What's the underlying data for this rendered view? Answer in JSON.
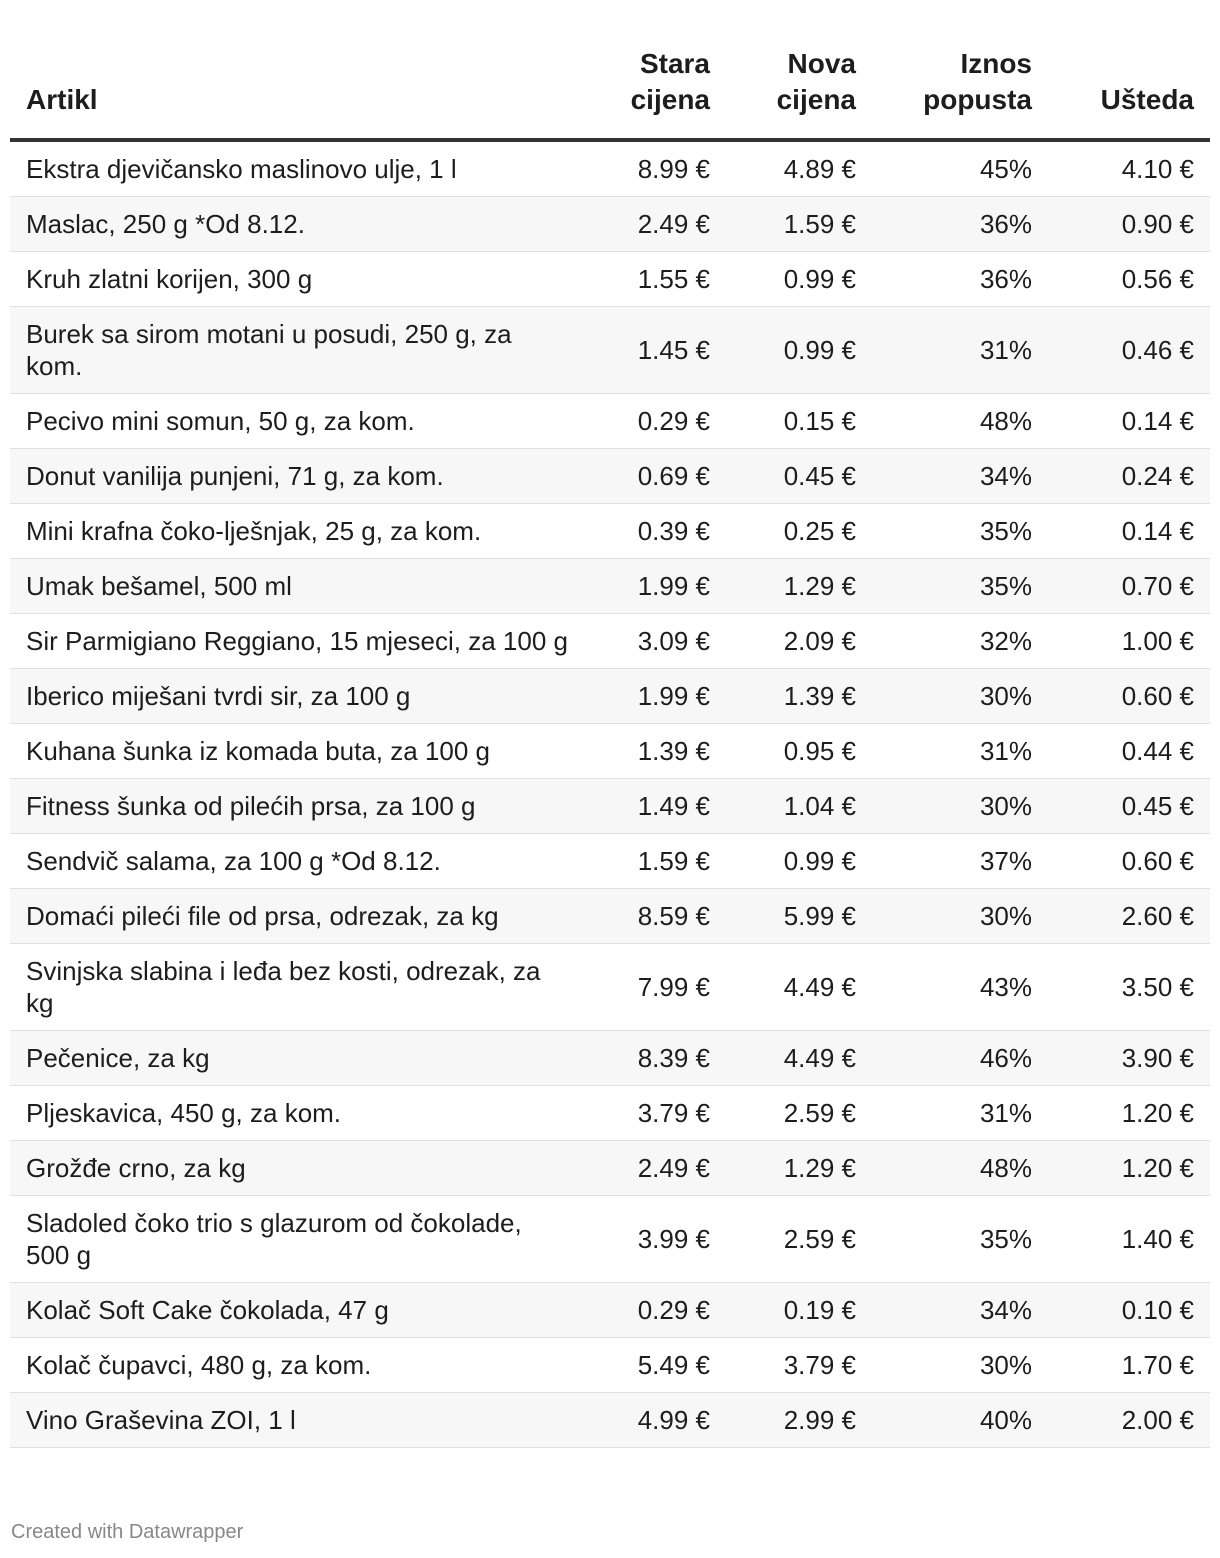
{
  "chart_data": {
    "type": "table",
    "columns": [
      "Artikl",
      "Stara cijena",
      "Nova cijena",
      "Iznos popusta",
      "Ušteda"
    ],
    "rows": [
      [
        "Ekstra djevičansko maslinovo ulje, 1 l",
        "8.99 €",
        "4.89 €",
        "45%",
        "4.10 €"
      ],
      [
        "Maslac, 250 g *Od 8.12.",
        "2.49 €",
        "1.59 €",
        "36%",
        "0.90 €"
      ],
      [
        "Kruh zlatni korijen, 300 g",
        "1.55 €",
        "0.99 €",
        "36%",
        "0.56 €"
      ],
      [
        "Burek sa sirom motani u posudi, 250 g, za kom.",
        "1.45 €",
        "0.99 €",
        "31%",
        "0.46 €"
      ],
      [
        "Pecivo mini somun, 50 g, za kom.",
        "0.29 €",
        "0.15 €",
        "48%",
        "0.14 €"
      ],
      [
        "Donut vanilija punjeni, 71 g, za kom.",
        "0.69 €",
        "0.45 €",
        "34%",
        "0.24 €"
      ],
      [
        "Mini krafna čoko-lješnjak, 25 g, za kom.",
        "0.39 €",
        "0.25 €",
        "35%",
        "0.14 €"
      ],
      [
        "Umak bešamel, 500 ml",
        "1.99 €",
        "1.29 €",
        "35%",
        "0.70 €"
      ],
      [
        "Sir Parmigiano Reggiano, 15 mjeseci, za 100 g",
        "3.09 €",
        "2.09 €",
        "32%",
        "1.00 €"
      ],
      [
        "Iberico miješani tvrdi sir, za 100 g",
        "1.99 €",
        "1.39 €",
        "30%",
        "0.60 €"
      ],
      [
        "Kuhana šunka iz komada buta, za 100 g",
        "1.39 €",
        "0.95 €",
        "31%",
        "0.44 €"
      ],
      [
        "Fitness šunka od pilećih prsa, za 100 g",
        "1.49 €",
        "1.04 €",
        "30%",
        "0.45 €"
      ],
      [
        "Sendvič salama, za 100 g *Od 8.12.",
        "1.59 €",
        "0.99 €",
        "37%",
        "0.60 €"
      ],
      [
        "Domaći pileći file od prsa, odrezak, za kg",
        "8.59 €",
        "5.99 €",
        "30%",
        "2.60 €"
      ],
      [
        "Svinjska slabina i leđa bez kosti, odrezak, za kg",
        "7.99 €",
        "4.49 €",
        "43%",
        "3.50 €"
      ],
      [
        "Pečenice, za kg",
        "8.39 €",
        "4.49 €",
        "46%",
        "3.90 €"
      ],
      [
        "Pljeskavica, 450 g, za kom.",
        "3.79 €",
        "2.59 €",
        "31%",
        "1.20 €"
      ],
      [
        "Grožđe crno, za kg",
        "2.49 €",
        "1.29 €",
        "48%",
        "1.20 €"
      ],
      [
        "Sladoled čoko trio s glazurom od čokolade, 500 g",
        "3.99 €",
        "2.59 €",
        "35%",
        "1.40 €"
      ],
      [
        "Kolač Soft Cake čokolada, 47 g",
        "0.29 €",
        "0.19 €",
        "34%",
        "0.10 €"
      ],
      [
        "Kolač čupavci, 480 g, za kom.",
        "5.49 €",
        "3.79 €",
        "30%",
        "1.70 €"
      ],
      [
        "Vino Graševina ZOI, 1 l",
        "4.99 €",
        "2.99 €",
        "40%",
        "2.00 €"
      ]
    ]
  },
  "footer": "Created with Datawrapper"
}
